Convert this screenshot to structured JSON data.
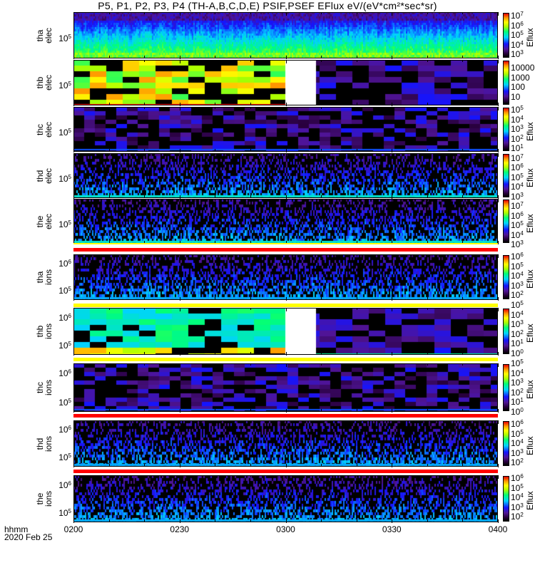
{
  "title": "P5, P1, P2, P3, P4 (TH-A,B,C,D,E) PSIF,PSEF EFlux eV/(eV*cm²*sec*sr)",
  "chart_data": {
    "type": "heatmap",
    "title": "P5, P1, P2, P3, P4 (TH-A,B,C,D,E) PSIF,PSEF EFlux eV/(eV*cm²*sec*sr)",
    "xlabel": "hhmm",
    "date": "2020 Feb 25",
    "x_ticks": [
      "0200",
      "0230",
      "0300",
      "0330",
      "0400"
    ],
    "x_range": [
      "0200",
      "0400"
    ],
    "data_gap": {
      "probe": "thb",
      "from": "0300",
      "to": "0309"
    },
    "panels": [
      {
        "probe": "tha",
        "species": "elec",
        "yticks": [
          {
            "b": "10",
            "e": "5"
          }
        ],
        "cbar_label": "Eflux",
        "cbar_ticks": [
          {
            "b": "10",
            "e": "7"
          },
          {
            "b": "10",
            "e": "6"
          },
          {
            "b": "10",
            "e": "5"
          },
          {
            "b": "10",
            "e": "4"
          },
          {
            "b": "10",
            "e": "3"
          }
        ]
      },
      {
        "probe": "thb",
        "species": "elec",
        "yticks": [
          {
            "b": "10",
            "e": "5"
          }
        ],
        "cbar_label": "",
        "cbar_ticks": [
          {
            "b": "10000",
            "e": ""
          },
          {
            "b": "1000",
            "e": ""
          },
          {
            "b": "100",
            "e": ""
          },
          {
            "b": "10",
            "e": ""
          }
        ]
      },
      {
        "probe": "thc",
        "species": "elec",
        "yticks": [
          {
            "b": "10",
            "e": "5"
          }
        ],
        "cbar_label": "Eflux",
        "cbar_ticks": [
          {
            "b": "10",
            "e": "5"
          },
          {
            "b": "10",
            "e": "4"
          },
          {
            "b": "10",
            "e": "3"
          },
          {
            "b": "10",
            "e": "2"
          },
          {
            "b": "10",
            "e": "1"
          }
        ]
      },
      {
        "probe": "thd",
        "species": "elec",
        "yticks": [
          {
            "b": "10",
            "e": "5"
          }
        ],
        "cbar_label": "Eflux",
        "cbar_ticks": [
          {
            "b": "10",
            "e": "7"
          },
          {
            "b": "10",
            "e": "6"
          },
          {
            "b": "10",
            "e": "5"
          },
          {
            "b": "10",
            "e": "4"
          },
          {
            "b": "10",
            "e": "3"
          }
        ]
      },
      {
        "probe": "the",
        "species": "elec",
        "yticks": [
          {
            "b": "10",
            "e": "5"
          }
        ],
        "cbar_label": "Eflux",
        "cbar_ticks": [
          {
            "b": "10",
            "e": "7"
          },
          {
            "b": "10",
            "e": "6"
          },
          {
            "b": "10",
            "e": "5"
          },
          {
            "b": "10",
            "e": "4"
          },
          {
            "b": "10",
            "e": "3"
          }
        ]
      },
      {
        "probe": "tha",
        "species": "ions",
        "yticks": [
          {
            "b": "10",
            "e": "6"
          },
          {
            "b": "10",
            "e": "5"
          }
        ],
        "cbar_label": "Eflux",
        "cbar_ticks": [
          {
            "b": "10",
            "e": "6"
          },
          {
            "b": "10",
            "e": "5"
          },
          {
            "b": "10",
            "e": "4"
          },
          {
            "b": "10",
            "e": "3"
          },
          {
            "b": "10",
            "e": "2"
          }
        ]
      },
      {
        "probe": "thb",
        "species": "ions",
        "yticks": [
          {
            "b": "10",
            "e": "6"
          },
          {
            "b": "10",
            "e": "5"
          }
        ],
        "cbar_label": "Eflux",
        "cbar_ticks": [
          {
            "b": "10",
            "e": "5"
          },
          {
            "b": "10",
            "e": "4"
          },
          {
            "b": "10",
            "e": "3"
          },
          {
            "b": "10",
            "e": "2"
          },
          {
            "b": "10",
            "e": "1"
          },
          {
            "b": "10",
            "e": "0"
          }
        ]
      },
      {
        "probe": "thc",
        "species": "ions",
        "yticks": [
          {
            "b": "10",
            "e": "6"
          },
          {
            "b": "10",
            "e": "5"
          }
        ],
        "cbar_label": "Eflux",
        "cbar_ticks": [
          {
            "b": "10",
            "e": "5"
          },
          {
            "b": "10",
            "e": "4"
          },
          {
            "b": "10",
            "e": "3"
          },
          {
            "b": "10",
            "e": "2"
          },
          {
            "b": "10",
            "e": "1"
          },
          {
            "b": "10",
            "e": "0"
          }
        ]
      },
      {
        "probe": "thd",
        "species": "ions",
        "yticks": [
          {
            "b": "10",
            "e": "6"
          },
          {
            "b": "10",
            "e": "5"
          }
        ],
        "cbar_label": "Eflux",
        "cbar_ticks": [
          {
            "b": "10",
            "e": "6"
          },
          {
            "b": "10",
            "e": "5"
          },
          {
            "b": "10",
            "e": "4"
          },
          {
            "b": "10",
            "e": "3"
          },
          {
            "b": "10",
            "e": "2"
          }
        ]
      },
      {
        "probe": "the",
        "species": "ions",
        "yticks": [
          {
            "b": "10",
            "e": "6"
          },
          {
            "b": "10",
            "e": "5"
          }
        ],
        "cbar_label": "Eflux",
        "cbar_ticks": [
          {
            "b": "10",
            "e": "6"
          },
          {
            "b": "10",
            "e": "5"
          },
          {
            "b": "10",
            "e": "4"
          },
          {
            "b": "10",
            "e": "3"
          },
          {
            "b": "10",
            "e": "2"
          }
        ]
      }
    ],
    "colors": {
      "separator_red": "#ff0000",
      "separator_yellow": "#ffff00"
    }
  }
}
